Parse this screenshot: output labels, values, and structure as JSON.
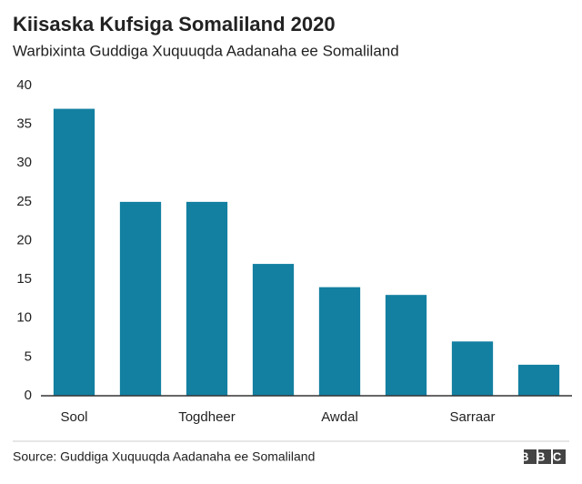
{
  "chart_data": {
    "type": "bar",
    "title": "Kiisaska Kufsiga Somaliland 2020",
    "subtitle": "Warbixinta Guddiga Xuquuqda Aadanaha ee Somaliland",
    "categories": [
      "Sool",
      null,
      "Togdheer",
      null,
      "Awdal",
      null,
      "Sarraar",
      null
    ],
    "values": [
      37,
      25,
      25,
      17,
      14,
      13,
      7,
      4
    ],
    "color": "#1380a1",
    "ylim": [
      0,
      40
    ],
    "yticks": [
      0,
      5,
      10,
      15,
      20,
      25,
      30,
      35,
      40
    ],
    "grid": false,
    "source": "Source: Guddiga Xuquuqda Aadanaha ee Somaliland",
    "logo": "BBC"
  }
}
